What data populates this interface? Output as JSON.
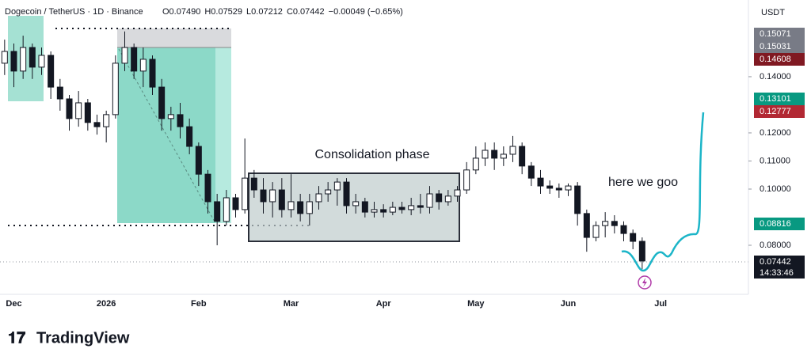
{
  "chart_data": {
    "type": "candlestick",
    "title": "Dogecoin / TetherUS · 1D · Binance",
    "ohlc_text": [
      "O0.07490",
      "H0.07529",
      "L0.07212",
      "C0.07442",
      "−0.00049 (−0.65%)"
    ],
    "currency": "USDT",
    "annotations": [
      "Consolidation phase",
      "here we goo"
    ],
    "brand": "TradingView",
    "up_color": "#131722",
    "down_color": "#131722",
    "ylim": [
      0.0631,
      0.1673
    ],
    "yticks": [
      {
        "value": 0.14,
        "label": "0.14000"
      },
      {
        "value": 0.12,
        "label": "0.12000"
      },
      {
        "value": 0.11,
        "label": "0.11000"
      },
      {
        "value": 0.1,
        "label": "0.10000"
      },
      {
        "value": 0.08,
        "label": "0.08000"
      }
    ],
    "price_tags": [
      {
        "label": "0.15071",
        "color": "#787b86"
      },
      {
        "label": "0.15031",
        "color": "#787b86"
      },
      {
        "label": "0.14608",
        "color": "#801922"
      },
      {
        "label": "0.13101",
        "color": "#089981"
      },
      {
        "label": "0.12777",
        "color": "#b22833"
      },
      {
        "label": "0.08816",
        "color": "#089981"
      },
      {
        "label": "0.07442",
        "color": "#131722"
      }
    ],
    "countdown": "14:33:46",
    "categories": [
      null,
      "Dec",
      null,
      null,
      null,
      null,
      null,
      null,
      null,
      null,
      null,
      "2026",
      null,
      null,
      null,
      null,
      null,
      null,
      null,
      null,
      null,
      "Feb",
      null,
      null,
      null,
      null,
      null,
      null,
      null,
      null,
      null,
      "Mar",
      null,
      null,
      null,
      null,
      null,
      null,
      null,
      null,
      null,
      "Apr",
      null,
      null,
      null,
      null,
      null,
      null,
      null,
      null,
      null,
      "May",
      null,
      null,
      null,
      null,
      null,
      null,
      null,
      null,
      null,
      "Jun",
      null,
      null,
      null,
      null,
      null,
      null,
      null,
      null,
      null,
      "Jul",
      null,
      null,
      null,
      null,
      null,
      null,
      null,
      null,
      null
    ],
    "candles": [
      [
        0.1448,
        0.1532,
        0.1406,
        0.149
      ],
      [
        0.149,
        0.1518,
        0.1363,
        0.142
      ],
      [
        0.142,
        0.1546,
        0.1392,
        0.1504
      ],
      [
        0.1504,
        0.1518,
        0.1392,
        0.1434
      ],
      [
        0.1434,
        0.1504,
        0.1406,
        0.1476
      ],
      [
        0.1476,
        0.149,
        0.1321,
        0.1363
      ],
      [
        0.1363,
        0.1392,
        0.1279,
        0.1321
      ],
      [
        0.1321,
        0.1335,
        0.1208,
        0.1251
      ],
      [
        0.1251,
        0.1349,
        0.1222,
        0.1307
      ],
      [
        0.1307,
        0.1321,
        0.1208,
        0.1237
      ],
      [
        0.1237,
        0.1265,
        0.1194,
        0.1222
      ],
      [
        0.1222,
        0.1279,
        0.1166,
        0.1265
      ],
      [
        0.1265,
        0.1476,
        0.1251,
        0.1448
      ],
      [
        0.1448,
        0.1561,
        0.142,
        0.1504
      ],
      [
        0.1504,
        0.1518,
        0.1392,
        0.142
      ],
      [
        0.142,
        0.1504,
        0.1363,
        0.1462
      ],
      [
        0.1462,
        0.1476,
        0.1335,
        0.1363
      ],
      [
        0.1363,
        0.1392,
        0.1208,
        0.1251
      ],
      [
        0.1251,
        0.1293,
        0.1208,
        0.1265
      ],
      [
        0.1265,
        0.1307,
        0.118,
        0.1222
      ],
      [
        0.1222,
        0.1251,
        0.1124,
        0.1152
      ],
      [
        0.1152,
        0.1166,
        0.1011,
        0.1053
      ],
      [
        0.1053,
        0.1068,
        0.0913,
        0.0955
      ],
      [
        0.0955,
        0.0983,
        0.08,
        0.0885
      ],
      [
        0.0885,
        0.0997,
        0.087,
        0.0969
      ],
      [
        0.0969,
        0.0983,
        0.0899,
        0.0927
      ],
      [
        0.0927,
        0.118,
        0.0913,
        0.1039
      ],
      [
        0.1039,
        0.1068,
        0.0969,
        0.0997
      ],
      [
        0.0997,
        0.1039,
        0.0913,
        0.0955
      ],
      [
        0.0955,
        0.1025,
        0.0899,
        0.0997
      ],
      [
        0.0997,
        0.1039,
        0.0899,
        0.0927
      ],
      [
        0.0927,
        0.1053,
        0.0899,
        0.0955
      ],
      [
        0.0955,
        0.0983,
        0.0885,
        0.0913
      ],
      [
        0.0913,
        0.0983,
        0.087,
        0.0955
      ],
      [
        0.0955,
        0.1011,
        0.0927,
        0.0983
      ],
      [
        0.0983,
        0.1025,
        0.0955,
        0.0997
      ],
      [
        0.0997,
        0.1039,
        0.0941,
        0.1025
      ],
      [
        0.1025,
        0.1039,
        0.0913,
        0.0941
      ],
      [
        0.0941,
        0.0983,
        0.0913,
        0.0955
      ],
      [
        0.0955,
        0.0969,
        0.0899,
        0.0918
      ],
      [
        0.0918,
        0.0955,
        0.0899,
        0.0927
      ],
      [
        0.0927,
        0.0946,
        0.0899,
        0.0918
      ],
      [
        0.0918,
        0.0955,
        0.0907,
        0.0935
      ],
      [
        0.0935,
        0.0955,
        0.0913,
        0.0927
      ],
      [
        0.0927,
        0.0969,
        0.0907,
        0.0941
      ],
      [
        0.0941,
        0.0983,
        0.0913,
        0.0935
      ],
      [
        0.0935,
        0.1011,
        0.0913,
        0.0983
      ],
      [
        0.0983,
        0.0997,
        0.0927,
        0.0955
      ],
      [
        0.0955,
        0.0997,
        0.0941,
        0.0975
      ],
      [
        0.0975,
        0.1011,
        0.0955,
        0.0997
      ],
      [
        0.0997,
        0.1096,
        0.0983,
        0.1068
      ],
      [
        0.1068,
        0.1152,
        0.1053,
        0.111
      ],
      [
        0.111,
        0.1166,
        0.1082,
        0.1138
      ],
      [
        0.1138,
        0.1166,
        0.1068,
        0.111
      ],
      [
        0.111,
        0.1152,
        0.1082,
        0.1124
      ],
      [
        0.1124,
        0.1189,
        0.1096,
        0.1152
      ],
      [
        0.1152,
        0.1166,
        0.1053,
        0.1082
      ],
      [
        0.1082,
        0.1096,
        0.1011,
        0.1039
      ],
      [
        0.1039,
        0.1068,
        0.0983,
        0.1011
      ],
      [
        0.1011,
        0.1031,
        0.0983,
        0.1003
      ],
      [
        0.1003,
        0.102,
        0.0969,
        0.0997
      ],
      [
        0.0997,
        0.102,
        0.0975,
        0.1011
      ],
      [
        0.1011,
        0.1025,
        0.087,
        0.0913
      ],
      [
        0.0913,
        0.0927,
        0.0777,
        0.0828
      ],
      [
        0.0828,
        0.0885,
        0.0814,
        0.087
      ],
      [
        0.087,
        0.0918,
        0.0828,
        0.0885
      ],
      [
        0.0885,
        0.0907,
        0.0842,
        0.087
      ],
      [
        0.087,
        0.0885,
        0.0814,
        0.0842
      ],
      [
        0.0842,
        0.0856,
        0.0786,
        0.0814
      ],
      [
        0.0814,
        0.0828,
        0.0715,
        0.0744
      ],
      null,
      null,
      null,
      null,
      null,
      null,
      null,
      null,
      null,
      null,
      null
    ]
  }
}
